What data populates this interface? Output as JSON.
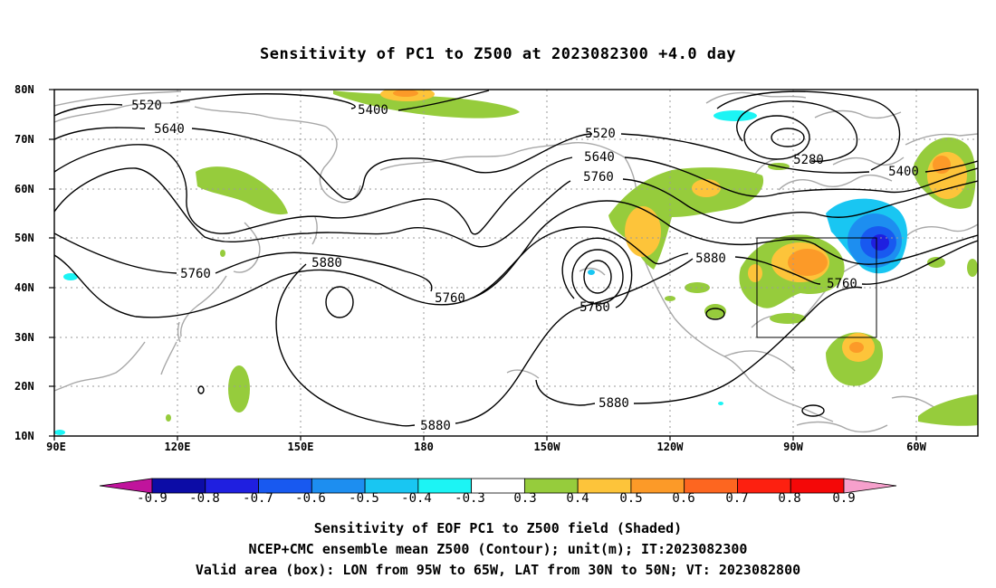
{
  "title": "Sensitivity of PC1 to Z500 at 2023082300 +4.0 day",
  "map": {
    "lat_labels": [
      "80N",
      "70N",
      "60N",
      "50N",
      "40N",
      "30N",
      "20N",
      "10N"
    ],
    "lon_labels": [
      "90E",
      "120E",
      "150E",
      "180",
      "150W",
      "120W",
      "90W",
      "60W"
    ],
    "contour_labels": [
      "5520",
      "5640",
      "5400",
      "5520",
      "5640",
      "5760",
      "5280",
      "5400",
      "5880",
      "5760",
      "5760",
      "5880",
      "5760",
      "5880",
      "5880"
    ],
    "box": {
      "lon": [
        "95W",
        "65W"
      ],
      "lat": [
        "30N",
        "50N"
      ]
    }
  },
  "colorbar": {
    "labels": [
      "-0.9",
      "-0.8",
      "-0.7",
      "-0.6",
      "-0.5",
      "-0.4",
      "-0.3",
      "0.3",
      "0.4",
      "0.5",
      "0.6",
      "0.7",
      "0.8",
      "0.9"
    ],
    "colors": [
      "#c0149c",
      "#0c0ca6",
      "#1f1fe0",
      "#1859f0",
      "#1d8ef0",
      "#19c6f2",
      "#1cf4f4",
      "#ffffff",
      "#96cc3c",
      "#fdc43a",
      "#fc9a28",
      "#fd6620",
      "#fd2010",
      "#f40808",
      "#f6a0cc"
    ]
  },
  "captions": {
    "line1": "Sensitivity of EOF PC1 to Z500 field (Shaded)",
    "line2": "NCEP+CMC ensemble mean Z500 (Contour); unit(m); IT:2023082300",
    "line3": "Valid area (box): LON from 95W to 65W, LAT from 30N to 50N; VT: 2023082800"
  }
}
